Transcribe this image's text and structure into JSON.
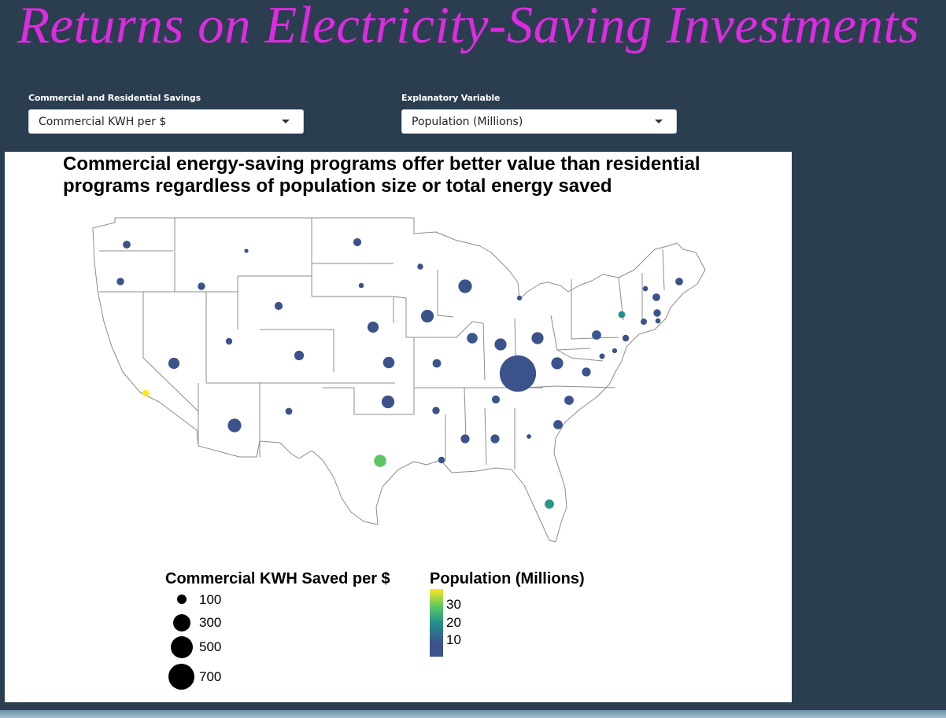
{
  "app": {
    "title": "Returns on Electricity-Saving Investments"
  },
  "controls": {
    "savings": {
      "label": "Commercial and Residential Savings",
      "value": "Commercial KWH per $"
    },
    "explanatory": {
      "label": "Explanatory Variable",
      "value": "Population (Millions)"
    }
  },
  "plot": {
    "title": "Commercial energy-saving programs offer better value than residential programs regardless of population size or total energy saved",
    "size_legend": {
      "title": "Commercial KWH Saved per $",
      "breaks": [
        "100",
        "300",
        "500",
        "700"
      ]
    },
    "color_legend": {
      "title": "Population (Millions)",
      "breaks": [
        "30",
        "20",
        "10"
      ]
    },
    "colors": {
      "low": "#3b528b",
      "mid": "#21918c",
      "high": "#5ec962",
      "max": "#fde725"
    }
  },
  "chart_data": {
    "type": "scatter",
    "subtype": "bubble-map",
    "title": "Commercial energy-saving programs offer better value than residential programs regardless of population size or total energy saved",
    "size_variable": "Commercial KWH Saved per $",
    "color_variable": "Population (Millions)",
    "size_breaks": [
      100,
      300,
      500,
      700
    ],
    "color_range": [
      0.6,
      39
    ],
    "points": [
      {
        "state": "WA",
        "kwh_per_dollar": 120,
        "population": 7.5
      },
      {
        "state": "OR",
        "kwh_per_dollar": 110,
        "population": 4.2
      },
      {
        "state": "CA",
        "kwh_per_dollar": 90,
        "population": 39
      },
      {
        "state": "ID",
        "kwh_per_dollar": 110,
        "population": 1.7
      },
      {
        "state": "NV",
        "kwh_per_dollar": 210,
        "population": 3.0
      },
      {
        "state": "MT",
        "kwh_per_dollar": 20,
        "population": 1.1
      },
      {
        "state": "UT",
        "kwh_per_dollar": 90,
        "population": 3.2
      },
      {
        "state": "AZ",
        "kwh_per_dollar": 270,
        "population": 7.2
      },
      {
        "state": "WY",
        "kwh_per_dollar": 130,
        "population": 0.6
      },
      {
        "state": "CO",
        "kwh_per_dollar": 170,
        "population": 5.7
      },
      {
        "state": "NM",
        "kwh_per_dollar": 100,
        "population": 2.1
      },
      {
        "state": "ND",
        "kwh_per_dollar": 130,
        "population": 0.8
      },
      {
        "state": "SD",
        "kwh_per_dollar": 50,
        "population": 0.9
      },
      {
        "state": "NE",
        "kwh_per_dollar": 210,
        "population": 1.9
      },
      {
        "state": "KS",
        "kwh_per_dollar": 220,
        "population": 2.9
      },
      {
        "state": "OK",
        "kwh_per_dollar": 250,
        "population": 3.9
      },
      {
        "state": "TX",
        "kwh_per_dollar": 240,
        "population": 29
      },
      {
        "state": "MN",
        "kwh_per_dollar": 70,
        "population": 5.6
      },
      {
        "state": "IA",
        "kwh_per_dollar": 250,
        "population": 3.2
      },
      {
        "state": "MO",
        "kwh_per_dollar": 140,
        "population": 6.1
      },
      {
        "state": "AR",
        "kwh_per_dollar": 110,
        "population": 3.0
      },
      {
        "state": "LA",
        "kwh_per_dollar": 90,
        "population": 4.6
      },
      {
        "state": "WI",
        "kwh_per_dollar": 270,
        "population": 5.8
      },
      {
        "state": "IL",
        "kwh_per_dollar": 200,
        "population": 12.7
      },
      {
        "state": "MI",
        "kwh_per_dollar": 40,
        "population": 10
      },
      {
        "state": "IN",
        "kwh_per_dollar": 230,
        "population": 6.7
      },
      {
        "state": "OH",
        "kwh_per_dollar": 230,
        "population": 11.7
      },
      {
        "state": "KY",
        "kwh_per_dollar": 750,
        "population": 4.5
      },
      {
        "state": "TN",
        "kwh_per_dollar": 130,
        "population": 6.8
      },
      {
        "state": "MS",
        "kwh_per_dollar": 150,
        "population": 3.0
      },
      {
        "state": "AL",
        "kwh_per_dollar": 150,
        "population": 4.9
      },
      {
        "state": "GA",
        "kwh_per_dollar": 30,
        "population": 10.6
      },
      {
        "state": "FL",
        "kwh_per_dollar": 160,
        "population": 21
      },
      {
        "state": "SC",
        "kwh_per_dollar": 160,
        "population": 5.1
      },
      {
        "state": "NC",
        "kwh_per_dollar": 160,
        "population": 10.4
      },
      {
        "state": "VA",
        "kwh_per_dollar": 150,
        "population": 8.5
      },
      {
        "state": "WV",
        "kwh_per_dollar": 230,
        "population": 1.8
      },
      {
        "state": "PA",
        "kwh_per_dollar": 160,
        "population": 12.8
      },
      {
        "state": "NY",
        "kwh_per_dollar": 100,
        "population": 19.5
      },
      {
        "state": "NJ",
        "kwh_per_dollar": 90,
        "population": 8.9
      },
      {
        "state": "MD",
        "kwh_per_dollar": 60,
        "population": 6.0
      },
      {
        "state": "DE",
        "kwh_per_dollar": 40,
        "population": 1.0
      },
      {
        "state": "VT",
        "kwh_per_dollar": 50,
        "population": 0.6
      },
      {
        "state": "NH",
        "kwh_per_dollar": 120,
        "population": 1.4
      },
      {
        "state": "ME",
        "kwh_per_dollar": 120,
        "population": 1.3
      },
      {
        "state": "MA",
        "kwh_per_dollar": 110,
        "population": 6.9
      },
      {
        "state": "CT",
        "kwh_per_dollar": 80,
        "population": 3.6
      },
      {
        "state": "RI",
        "kwh_per_dollar": 50,
        "population": 1.1
      }
    ]
  }
}
